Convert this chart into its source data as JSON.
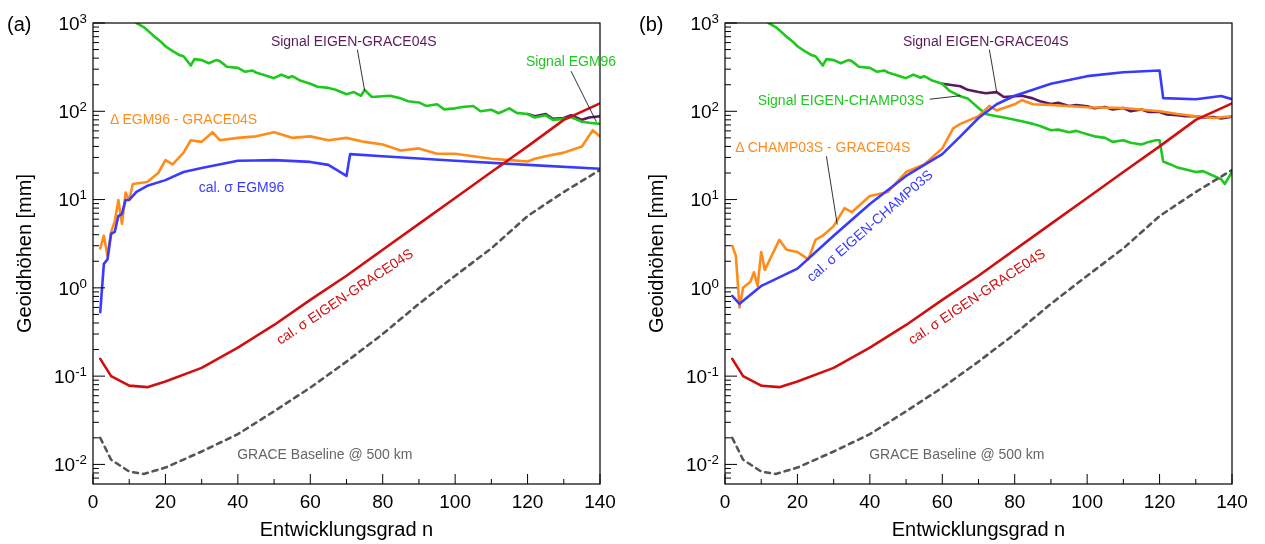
{
  "chart_data": [
    {
      "type": "line",
      "title": "(a)",
      "xlabel": "Entwicklungsgrad n",
      "ylabel": "Geoidhöhen [mm]",
      "log": "y",
      "xlim": [
        0,
        140
      ],
      "ylim": [
        0.006,
        1000
      ],
      "xticks": [
        0,
        {
          "value": 10,
          "label": null
        },
        20,
        {
          "value": 30,
          "label": null
        },
        40,
        {
          "value": 50,
          "label": null
        },
        60,
        {
          "value": 70,
          "label": null
        },
        80,
        {
          "value": 90,
          "label": null
        },
        100,
        {
          "value": 110,
          "label": null
        },
        120,
        {
          "value": 130,
          "label": null
        },
        140
      ],
      "yticks": [
        {
          "value": 0.007,
          "label": null
        },
        {
          "value": 0.008,
          "label": null
        },
        {
          "value": 0.009,
          "label": null
        },
        {
          "value": 0.01,
          "label": "10$^{-2}$"
        },
        {
          "value": 0.02,
          "label": null
        },
        {
          "value": 0.03,
          "label": null
        },
        {
          "value": 0.04,
          "label": null
        },
        {
          "value": 0.05,
          "label": null
        },
        {
          "value": 0.06,
          "label": null
        },
        {
          "value": 0.07,
          "label": null
        },
        {
          "value": 0.08,
          "label": null
        },
        {
          "value": 0.09,
          "label": null
        },
        {
          "value": 0.1,
          "label": "10$^{-1}$"
        },
        {
          "value": 0.2,
          "label": null
        },
        {
          "value": 0.3,
          "label": null
        },
        {
          "value": 0.4,
          "label": null
        },
        {
          "value": 0.5,
          "label": null
        },
        {
          "value": 0.6,
          "label": null
        },
        {
          "value": 0.7,
          "label": null
        },
        {
          "value": 0.8,
          "label": null
        },
        {
          "value": 0.9,
          "label": null
        },
        {
          "value": 1,
          "label": "10$^{0}$"
        },
        {
          "value": 2,
          "label": null
        },
        {
          "value": 3,
          "label": null
        },
        {
          "value": 4,
          "label": null
        },
        {
          "value": 5,
          "label": null
        },
        {
          "value": 6,
          "label": null
        },
        {
          "value": 7,
          "label": null
        },
        {
          "value": 8,
          "label": null
        },
        {
          "value": 9,
          "label": null
        },
        {
          "value": 10,
          "label": "10$^{1}$"
        },
        {
          "value": 20,
          "label": null
        },
        {
          "value": 30,
          "label": null
        },
        {
          "value": 40,
          "label": null
        },
        {
          "value": 50,
          "label": null
        },
        {
          "value": 60,
          "label": null
        },
        {
          "value": 70,
          "label": null
        },
        {
          "value": 80,
          "label": null
        },
        {
          "value": 90,
          "label": null
        },
        {
          "value": 100,
          "label": "10$^{2}$"
        },
        {
          "value": 200,
          "label": null
        },
        {
          "value": 300,
          "label": null
        },
        {
          "value": 400,
          "label": null
        },
        {
          "value": 500,
          "label": null
        },
        {
          "value": 600,
          "label": null
        },
        {
          "value": 700,
          "label": null
        },
        {
          "value": 800,
          "label": null
        },
        {
          "value": 900,
          "label": null
        },
        {
          "value": 1000,
          "label": "10$^{3}$"
        }
      ],
      "series": [
        {
          "name": "Signal EIGEN-GRACE04S",
          "color": "#5c1a5c",
          "x": [
            120,
            122,
            125,
            127,
            130,
            132,
            135,
            137,
            140
          ],
          "values": [
            93,
            88,
            93,
            82,
            84,
            90,
            80,
            85,
            88
          ]
        },
        {
          "name": "Signal EGM96",
          "color": "#1ec81e",
          "x": [
            12,
            14,
            15,
            17,
            19,
            20,
            22,
            24,
            25,
            27,
            28,
            30,
            32,
            34,
            35,
            37,
            40,
            42,
            44,
            45,
            47,
            50,
            52,
            54,
            55,
            57,
            60,
            62,
            65,
            67,
            70,
            72,
            74,
            75,
            77,
            80,
            82,
            85,
            87,
            90,
            92,
            95,
            97,
            100,
            102,
            105,
            107,
            110,
            112,
            115,
            117,
            120,
            122,
            125,
            127,
            130,
            132,
            135,
            137,
            140
          ],
          "values": [
            1000,
            900,
            830,
            700,
            600,
            545,
            480,
            430,
            420,
            330,
            390,
            380,
            350,
            380,
            370,
            320,
            310,
            280,
            290,
            275,
            260,
            237,
            260,
            240,
            250,
            225,
            205,
            190,
            184,
            175,
            156,
            165,
            150,
            175,
            145,
            148,
            150,
            140,
            130,
            126,
            115,
            120,
            105,
            108,
            112,
            115,
            100,
            104,
            95,
            108,
            96,
            93,
            85,
            90,
            80,
            82,
            86,
            76,
            74,
            72
          ]
        },
        {
          "name": "Δ EGM96 - GRACE04S",
          "color": "#ff8c1a",
          "x": [
            2,
            3,
            4,
            5,
            6,
            7,
            8,
            9,
            10,
            11,
            15,
            18,
            20,
            22,
            25,
            27,
            30,
            33,
            35,
            40,
            45,
            50,
            55,
            60,
            65,
            70,
            75,
            80,
            85,
            90,
            95,
            100,
            105,
            110,
            115,
            120,
            122,
            125,
            130,
            135,
            138,
            140
          ],
          "values": [
            2.8,
            3.9,
            2.3,
            4.3,
            5.6,
            9.9,
            5.3,
            12,
            9.9,
            15,
            15.8,
            20,
            28,
            25,
            34,
            47,
            45,
            58,
            47,
            50,
            52,
            58,
            50,
            52,
            47,
            50,
            45,
            42,
            36,
            38,
            33,
            33,
            31,
            29,
            28,
            27,
            29,
            31,
            34,
            40,
            61,
            52
          ]
        },
        {
          "name": "cal. σ EGM96",
          "color": "#3a3aff",
          "x": [
            2,
            3,
            4,
            5,
            6,
            7,
            8,
            9,
            10,
            12,
            15,
            20,
            25,
            30,
            40,
            50,
            60,
            65,
            70,
            71,
            80,
            100,
            120,
            140
          ],
          "values": [
            0.53,
            1.87,
            2.1,
            4.1,
            4.3,
            6.5,
            6.9,
            9.9,
            9.9,
            12.2,
            14.3,
            16.6,
            20.5,
            22.8,
            27.5,
            28,
            26.7,
            24.7,
            18.5,
            32.7,
            31,
            27.5,
            24.7,
            22.3
          ]
        },
        {
          "name": "cal. σ EIGEN-GRACE04S",
          "color": "#d01010",
          "x": [
            2,
            5,
            10,
            15,
            20,
            30,
            40,
            50,
            60,
            70,
            80,
            90,
            100,
            110,
            120,
            130,
            140
          ],
          "values": [
            0.157,
            0.1,
            0.078,
            0.075,
            0.087,
            0.124,
            0.21,
            0.38,
            0.73,
            1.37,
            2.7,
            5.3,
            10.4,
            20.5,
            40,
            80,
            123
          ]
        },
        {
          "name": "GRACE Baseline @ 500 km",
          "color": "#555555",
          "line_style": "dashed",
          "x": [
            2,
            5,
            10,
            14,
            20,
            30,
            40,
            50,
            60,
            70,
            80,
            90,
            100,
            110,
            120,
            130,
            140
          ],
          "values": [
            0.02,
            0.0113,
            0.0083,
            0.0078,
            0.0092,
            0.014,
            0.022,
            0.04,
            0.074,
            0.146,
            0.3,
            0.66,
            1.37,
            2.8,
            6.5,
            12.2,
            21.6
          ]
        }
      ]
    },
    {
      "type": "line",
      "title": "(b)",
      "xlabel": "Entwicklungsgrad n",
      "ylabel": "Geoidhöhen [mm]",
      "log": "y",
      "xlim": [
        0,
        140
      ],
      "ylim": [
        0.006,
        1000
      ],
      "xticks": [
        0,
        {
          "value": 10,
          "label": null
        },
        20,
        {
          "value": 30,
          "label": null
        },
        40,
        {
          "value": 50,
          "label": null
        },
        60,
        {
          "value": 70,
          "label": null
        },
        80,
        {
          "value": 90,
          "label": null
        },
        100,
        {
          "value": 110,
          "label": null
        },
        120,
        {
          "value": 130,
          "label": null
        },
        140
      ],
      "yticks": [
        {
          "value": 0.007,
          "label": null
        },
        {
          "value": 0.008,
          "label": null
        },
        {
          "value": 0.009,
          "label": null
        },
        {
          "value": 0.01,
          "label": "10$^{-2}$"
        },
        {
          "value": 0.02,
          "label": null
        },
        {
          "value": 0.03,
          "label": null
        },
        {
          "value": 0.04,
          "label": null
        },
        {
          "value": 0.05,
          "label": null
        },
        {
          "value": 0.06,
          "label": null
        },
        {
          "value": 0.07,
          "label": null
        },
        {
          "value": 0.08,
          "label": null
        },
        {
          "value": 0.09,
          "label": null
        },
        {
          "value": 0.1,
          "label": "10$^{-1}$"
        },
        {
          "value": 0.2,
          "label": null
        },
        {
          "value": 0.3,
          "label": null
        },
        {
          "value": 0.4,
          "label": null
        },
        {
          "value": 0.5,
          "label": null
        },
        {
          "value": 0.6,
          "label": null
        },
        {
          "value": 0.7,
          "label": null
        },
        {
          "value": 0.8,
          "label": null
        },
        {
          "value": 0.9,
          "label": null
        },
        {
          "value": 1,
          "label": "10$^{0}$"
        },
        {
          "value": 2,
          "label": null
        },
        {
          "value": 3,
          "label": null
        },
        {
          "value": 4,
          "label": null
        },
        {
          "value": 5,
          "label": null
        },
        {
          "value": 6,
          "label": null
        },
        {
          "value": 7,
          "label": null
        },
        {
          "value": 8,
          "label": null
        },
        {
          "value": 9,
          "label": null
        },
        {
          "value": 10,
          "label": "10$^{1}$"
        },
        {
          "value": 20,
          "label": null
        },
        {
          "value": 30,
          "label": null
        },
        {
          "value": 40,
          "label": null
        },
        {
          "value": 50,
          "label": null
        },
        {
          "value": 60,
          "label": null
        },
        {
          "value": 70,
          "label": null
        },
        {
          "value": 80,
          "label": null
        },
        {
          "value": 90,
          "label": null
        },
        {
          "value": 100,
          "label": "10$^{2}$"
        },
        {
          "value": 200,
          "label": null
        },
        {
          "value": 300,
          "label": null
        },
        {
          "value": 400,
          "label": null
        },
        {
          "value": 500,
          "label": null
        },
        {
          "value": 600,
          "label": null
        },
        {
          "value": 700,
          "label": null
        },
        {
          "value": 800,
          "label": null
        },
        {
          "value": 900,
          "label": null
        },
        {
          "value": 1000,
          "label": "10$^{3}$"
        }
      ],
      "series": [
        {
          "name": "Signal EIGEN-GRACE04S",
          "color": "#5c1a5c",
          "x": [
            60,
            62,
            65,
            67,
            70,
            72,
            75,
            77,
            80,
            82,
            85,
            87,
            90,
            92,
            95,
            97,
            100,
            102,
            105,
            107,
            110,
            112,
            115,
            117,
            120,
            122,
            125,
            127,
            130,
            132,
            135,
            137,
            140
          ],
          "values": [
            205,
            200,
            192,
            175,
            165,
            160,
            165,
            145,
            148,
            150,
            140,
            130,
            121,
            125,
            115,
            118,
            114,
            108,
            112,
            105,
            109,
            100,
            105,
            98,
            98,
            92,
            90,
            88,
            88,
            85,
            86,
            83,
            87
          ]
        },
        {
          "name": "Signal EIGEN-CHAMP03S",
          "color": "#1ec81e",
          "x": [
            12,
            14,
            15,
            17,
            19,
            20,
            22,
            24,
            25,
            27,
            28,
            30,
            32,
            34,
            35,
            37,
            40,
            42,
            44,
            45,
            47,
            50,
            52,
            54,
            55,
            57,
            60,
            62,
            65,
            67,
            70,
            72,
            75,
            77,
            80,
            82,
            85,
            87,
            90,
            92,
            95,
            97,
            100,
            102,
            105,
            107,
            110,
            112,
            115,
            117,
            119,
            120,
            121,
            123,
            125,
            127,
            130,
            132,
            135,
            137,
            138,
            140
          ],
          "values": [
            1000,
            900,
            830,
            700,
            600,
            545,
            480,
            430,
            420,
            330,
            390,
            380,
            350,
            380,
            370,
            320,
            310,
            280,
            290,
            275,
            260,
            237,
            260,
            240,
            250,
            225,
            205,
            170,
            148,
            140,
            109,
            93,
            88,
            85,
            80,
            77,
            72,
            68,
            61,
            62,
            58,
            60,
            55,
            52,
            50,
            45,
            47,
            44,
            42,
            45,
            47,
            47,
            27,
            25,
            23,
            22,
            20.5,
            21,
            18.5,
            17,
            15,
            20.5
          ]
        },
        {
          "name": "Δ CHAMP03S - GRACE04S",
          "color": "#ff8c1a",
          "x": [
            2,
            3,
            4,
            5,
            7,
            8,
            9,
            10,
            11,
            15,
            17,
            20,
            23,
            25,
            27,
            30,
            33,
            35,
            40,
            45,
            50,
            55,
            60,
            63,
            65,
            70,
            73,
            75,
            80,
            82,
            85,
            90,
            100,
            110,
            120,
            125,
            130,
            135,
            140
          ],
          "values": [
            3,
            2.3,
            0.6,
            1,
            1.17,
            1.5,
            1.05,
            2.55,
            1.6,
            3.5,
            2.7,
            2.55,
            2.1,
            3.5,
            3.9,
            5,
            8,
            7.2,
            11,
            12.2,
            20.5,
            25,
            38,
            64,
            72,
            88,
            115,
            102,
            120,
            134,
            120,
            118,
            111,
            109,
            100,
            93,
            88,
            84,
            88
          ]
        },
        {
          "name": "cal. σ EIGEN-CHAMP03S",
          "color": "#3a3aff",
          "x": [
            2,
            4,
            10,
            20,
            30,
            40,
            50,
            60,
            65,
            70,
            75,
            80,
            90,
            100,
            110,
            120,
            121,
            130,
            137,
            140
          ],
          "values": [
            0.81,
            0.66,
            1.05,
            1.65,
            3.9,
            8.9,
            18.5,
            32.7,
            52,
            84,
            120,
            150,
            205,
            250,
            277,
            290,
            141,
            137,
            149,
            137
          ]
        },
        {
          "name": "cal. σ EIGEN-GRACE04S",
          "color": "#d01010",
          "x": [
            2,
            5,
            10,
            15,
            20,
            30,
            40,
            50,
            60,
            70,
            80,
            90,
            100,
            110,
            120,
            130,
            140
          ],
          "values": [
            0.157,
            0.1,
            0.078,
            0.075,
            0.087,
            0.124,
            0.21,
            0.38,
            0.73,
            1.37,
            2.7,
            5.3,
            10.4,
            20.5,
            40,
            80,
            123
          ]
        },
        {
          "name": "GRACE Baseline @ 500 km",
          "color": "#555555",
          "line_style": "dashed",
          "x": [
            2,
            5,
            10,
            14,
            20,
            30,
            40,
            50,
            60,
            70,
            80,
            90,
            100,
            110,
            120,
            130,
            140
          ],
          "values": [
            0.02,
            0.0113,
            0.0083,
            0.0078,
            0.0092,
            0.014,
            0.022,
            0.04,
            0.074,
            0.146,
            0.3,
            0.66,
            1.37,
            2.8,
            6.5,
            12.2,
            21.6
          ]
        }
      ]
    }
  ]
}
